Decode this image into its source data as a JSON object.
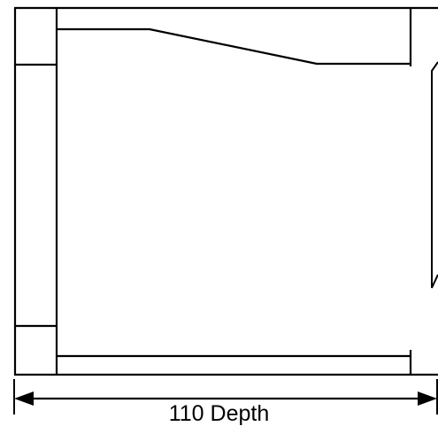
{
  "dimension": {
    "label": "110 Depth"
  },
  "colors": {
    "line": "#000000",
    "background": "#ffffff"
  }
}
